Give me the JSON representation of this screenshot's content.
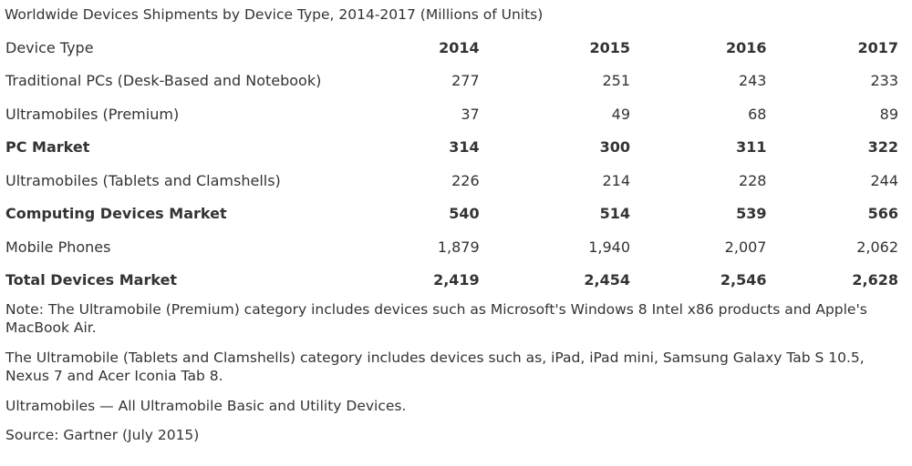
{
  "caption": "Worldwide Devices Shipments by Device Type, 2014-2017 (Millions of Units)",
  "table": {
    "header": [
      "Device Type",
      "2014",
      "2015",
      "2016",
      "2017"
    ],
    "rows": [
      {
        "label": "Traditional PCs (Desk-Based and Notebook)",
        "values": [
          "277",
          "251",
          "243",
          "233"
        ],
        "bold": false
      },
      {
        "label": "Ultramobiles (Premium)",
        "values": [
          "37",
          "49",
          "68",
          "89"
        ],
        "bold": false
      },
      {
        "label": "PC Market",
        "values": [
          "314",
          "300",
          "311",
          "322"
        ],
        "bold": true
      },
      {
        "label": "Ultramobiles (Tablets and Clamshells)",
        "values": [
          "226",
          "214",
          "228",
          "244"
        ],
        "bold": false
      },
      {
        "label": "Computing Devices Market",
        "values": [
          "540",
          "514",
          "539",
          "566"
        ],
        "bold": true
      },
      {
        "label": "Mobile Phones",
        "values": [
          "1,879",
          "1,940",
          "2,007",
          "2,062"
        ],
        "bold": false
      },
      {
        "label": "Total Devices Market",
        "values": [
          "2,419",
          "2,454",
          "2,546",
          "2,628"
        ],
        "bold": true
      }
    ]
  },
  "notes": {
    "note1": "Note: The Ultramobile (Premium) category includes devices such as Microsoft's Windows 8 Intel x86 products and Apple's MacBook Air.",
    "note2": "The Ultramobile (Tablets and Clamshells) category includes devices such as, iPad, iPad mini, Samsung Galaxy Tab S 10.5, Nexus 7 and Acer Iconia Tab 8.",
    "note3": "Ultramobiles — All Ultramobile Basic and Utility Devices.",
    "source": "Source: Gartner (July 2015)"
  }
}
